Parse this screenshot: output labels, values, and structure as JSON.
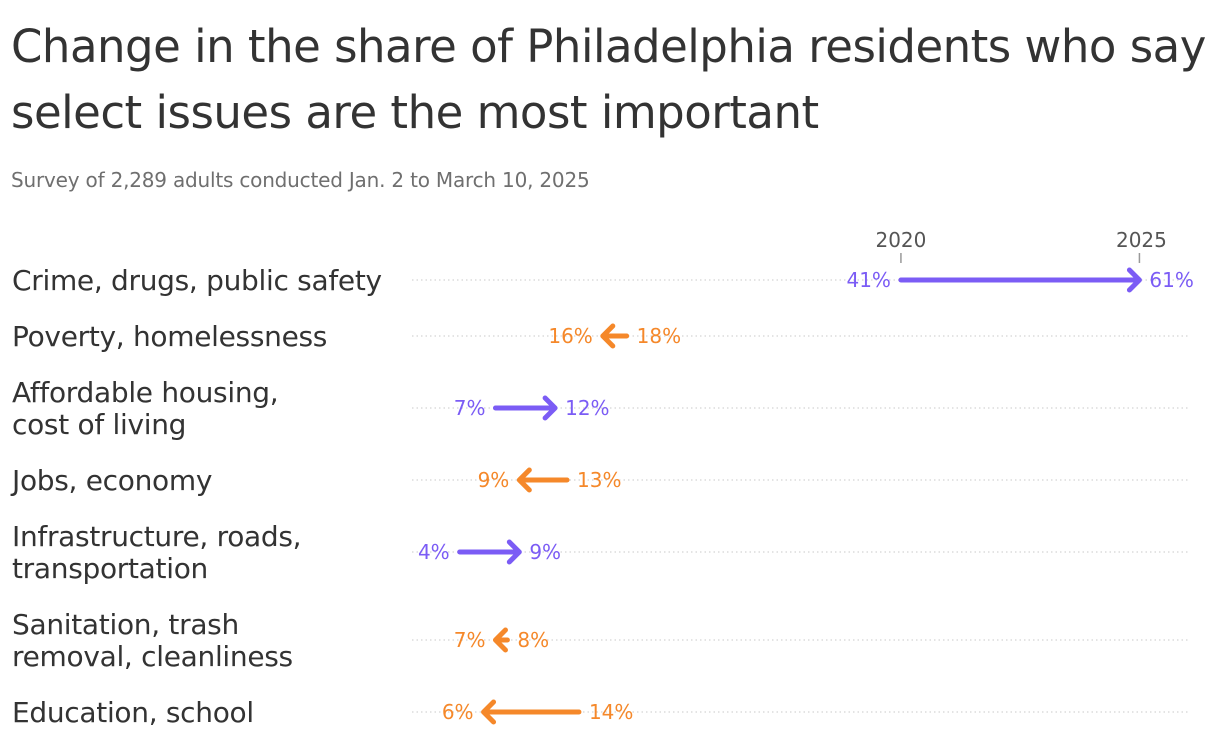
{
  "title": "Change in the share of Philadelphia residents who say select issues are the most important",
  "subtitle": "Survey of 2,289 adults conducted Jan. 2 to March 10, 2025",
  "colors": {
    "increase": "#7b5cf5",
    "decrease": "#f5882a",
    "gridline": "#d4d4d4",
    "text": "#333333"
  },
  "chart_data": {
    "type": "dumbbell-arrow",
    "start_label": "2020",
    "end_label": "2025",
    "unit": "%",
    "xlim": [
      0,
      65
    ],
    "rows": [
      {
        "label": "Crime, drugs, public safety",
        "start": 41,
        "end": 61
      },
      {
        "label": "Poverty, homelessness",
        "start": 18,
        "end": 16
      },
      {
        "label": "Affordable housing,\ncost of living",
        "start": 7,
        "end": 12
      },
      {
        "label": "Jobs, economy",
        "start": 13,
        "end": 9
      },
      {
        "label": "Infrastructure, roads,\ntransportation",
        "start": 4,
        "end": 9
      },
      {
        "label": "Sanitation, trash\nremoval, cleanliness",
        "start": 8,
        "end": 7
      },
      {
        "label": "Education, school",
        "start": 14,
        "end": 6
      }
    ]
  }
}
